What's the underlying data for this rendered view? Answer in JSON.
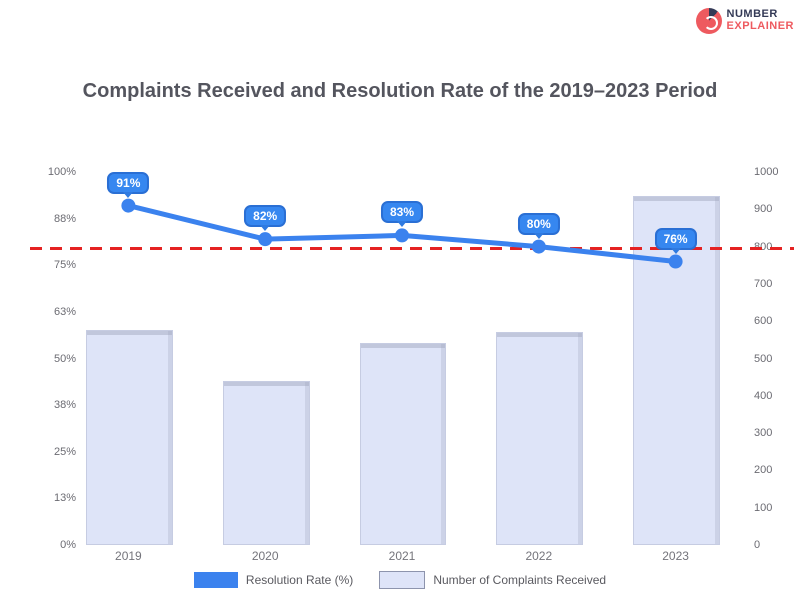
{
  "logo": {
    "line1": "NUMBER",
    "line2": "EXPLAINER"
  },
  "title": "Complaints Received and Resolution Rate of the 2019–2023 Period",
  "chart_data": {
    "type": "combo",
    "categories": [
      "2019",
      "2020",
      "2021",
      "2022",
      "2023"
    ],
    "series": [
      {
        "name": "Resolution Rate (%)",
        "type": "line",
        "axis": "left",
        "color": "#3b82ee",
        "values": [
          91,
          82,
          83,
          80,
          76
        ],
        "point_labels": [
          "91%",
          "82%",
          "83%",
          "80%",
          "76%"
        ]
      },
      {
        "name": "Number of Complaints Received",
        "type": "bar",
        "axis": "right",
        "color": "#dee4f8",
        "values": [
          570,
          435,
          535,
          565,
          930
        ]
      }
    ],
    "target_line": {
      "axis": "left",
      "value": 80,
      "color": "#e52222",
      "style": "dashed"
    },
    "left_axis": {
      "range": [
        0,
        100
      ],
      "ticks": [
        "100%",
        "88%",
        "75%",
        "63%",
        "50%",
        "38%",
        "25%",
        "13%",
        "0%"
      ]
    },
    "right_axis": {
      "range": [
        0,
        1000
      ],
      "ticks": [
        "1000",
        "900",
        "800",
        "700",
        "600",
        "500",
        "400",
        "300",
        "200",
        "100",
        "0"
      ]
    },
    "legend": [
      {
        "label": "Resolution Rate (%)",
        "swatch": "#3b82ee"
      },
      {
        "label": "Number of Complaints Received",
        "swatch": "#dee4f8"
      }
    ],
    "legend_position": "bottom",
    "grid": false
  }
}
